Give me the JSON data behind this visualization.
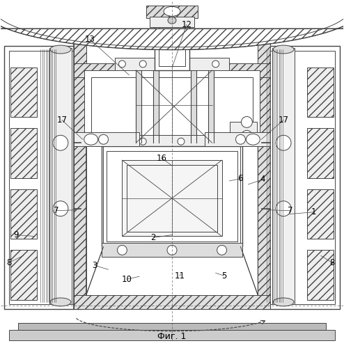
{
  "title": "Фиг. 1",
  "background": "#ffffff",
  "line_color": "#444444",
  "leader_data": [
    [
      "1",
      [
        415,
        192
      ],
      [
        452,
        195
      ]
    ],
    [
      "2",
      [
        247,
        162
      ],
      [
        220,
        158
      ]
    ],
    [
      "3",
      [
        155,
        112
      ],
      [
        135,
        118
      ]
    ],
    [
      "4",
      [
        357,
        235
      ],
      [
        378,
        242
      ]
    ],
    [
      "5",
      [
        310,
        107
      ],
      [
        322,
        103
      ]
    ],
    [
      "6",
      [
        330,
        240
      ],
      [
        345,
        243
      ]
    ],
    [
      "7",
      [
        108,
        198
      ],
      [
        80,
        197
      ]
    ],
    [
      "7",
      [
        386,
        198
      ],
      [
        418,
        197
      ]
    ],
    [
      "8",
      [
        462,
        132
      ],
      [
        478,
        122
      ]
    ],
    [
      "8",
      [
        32,
        132
      ],
      [
        12,
        122
      ]
    ],
    [
      "9",
      [
        48,
        160
      ],
      [
        22,
        162
      ]
    ],
    [
      "10",
      [
        200,
        102
      ],
      [
        182,
        98
      ]
    ],
    [
      "11",
      [
        260,
        105
      ],
      [
        258,
        103
      ]
    ],
    [
      "12",
      [
        247,
        403
      ],
      [
        268,
        466
      ]
    ],
    [
      "13",
      [
        185,
        393
      ],
      [
        128,
        445
      ]
    ],
    [
      "16",
      [
        247,
        262
      ],
      [
        232,
        273
      ]
    ],
    [
      "17",
      [
        118,
        300
      ],
      [
        88,
        328
      ]
    ],
    [
      "17",
      [
        376,
        300
      ],
      [
        408,
        328
      ]
    ]
  ]
}
